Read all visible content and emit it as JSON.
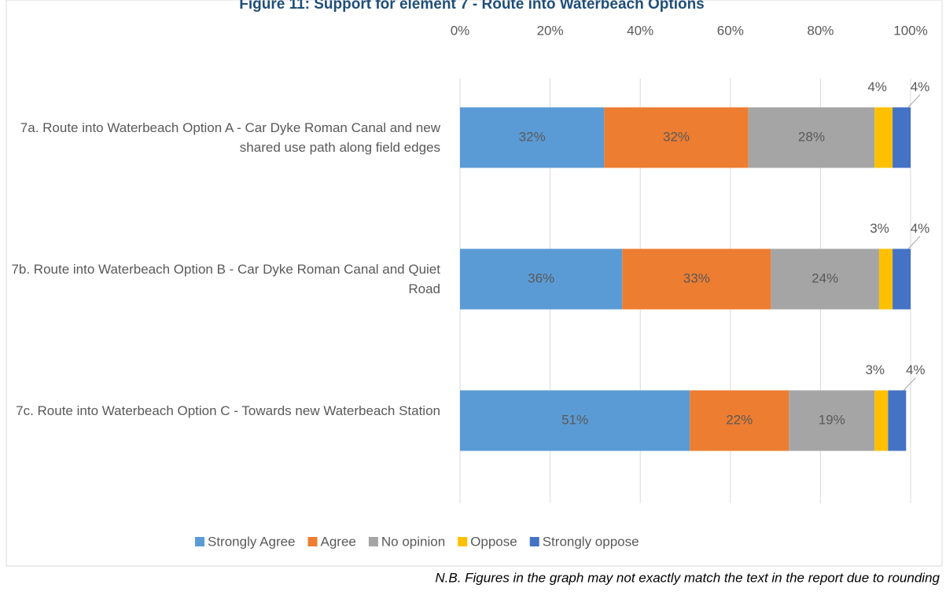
{
  "chart_data": {
    "type": "stacked_bar_horizontal",
    "title": "Figure 11: Support for element 7 - Route into Waterbeach Options",
    "categories": [
      "7a. Route into Waterbeach Option A - Car Dyke Roman Canal and new shared use path along field edges",
      "7b. Route into Waterbeach Option B - Car Dyke Roman Canal and Quiet Road",
      "7c. Route into Waterbeach Option C - Towards new Waterbeach Station"
    ],
    "series": [
      {
        "name": "Strongly Agree",
        "color": "#5b9bd5",
        "values": [
          32,
          36,
          51
        ],
        "value_labels": [
          "32%",
          "36%",
          "51%"
        ]
      },
      {
        "name": "Agree",
        "color": "#ed7d31",
        "values": [
          32,
          33,
          22
        ],
        "value_labels": [
          "32%",
          "33%",
          "22%"
        ]
      },
      {
        "name": "No opinion",
        "color": "#a5a5a5",
        "values": [
          28,
          24,
          19
        ],
        "value_labels": [
          "28%",
          "24%",
          "19%"
        ]
      },
      {
        "name": "Oppose",
        "color": "#ffc000",
        "values": [
          4,
          3,
          3
        ],
        "value_labels": [
          "4%",
          "3%",
          "3%"
        ]
      },
      {
        "name": "Strongly oppose",
        "color": "#4472c4",
        "values": [
          4,
          4,
          4
        ],
        "value_labels": [
          "4%",
          "4%",
          "4%"
        ]
      }
    ],
    "xlim": [
      0,
      100
    ],
    "xticks": [
      {
        "value": 0,
        "label": "0%"
      },
      {
        "value": 20,
        "label": "20%"
      },
      {
        "value": 40,
        "label": "40%"
      },
      {
        "value": 60,
        "label": "60%"
      },
      {
        "value": 80,
        "label": "80%"
      },
      {
        "value": 100,
        "label": "100%"
      }
    ],
    "grid": true,
    "legend": "bottom",
    "note": "N.B. Figures in the graph may not exactly match the text in the report due to rounding"
  }
}
